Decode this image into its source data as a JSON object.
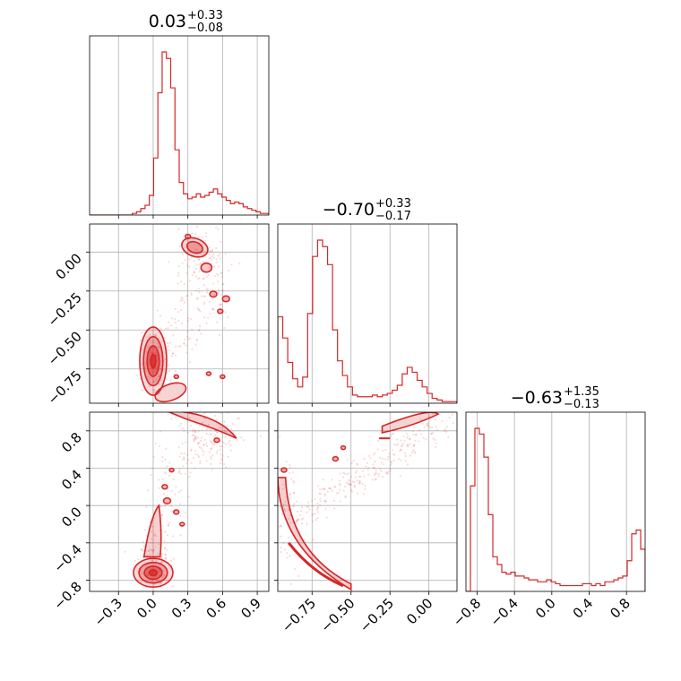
{
  "chart_data": {
    "type": "corner",
    "color": "#d62728",
    "grid": true,
    "parameters": [
      {
        "range": [
          -0.55,
          1.0
        ],
        "ticks": [
          -0.3,
          0.0,
          0.3,
          0.6,
          0.9
        ],
        "tick_labels": [
          "−0.3",
          "0.0",
          "0.3",
          "0.6",
          "0.9"
        ],
        "title": {
          "median": "0.03",
          "upper": "+0.33",
          "lower": "−0.08"
        }
      },
      {
        "range": [
          -0.97,
          0.18
        ],
        "ticks": [
          -0.75,
          -0.5,
          -0.25,
          0.0
        ],
        "tick_labels": [
          "−0.75",
          "−0.50",
          "−0.25",
          "0.00"
        ],
        "title": {
          "median": "−0.70",
          "upper": "+0.33",
          "lower": "−0.17"
        }
      },
      {
        "range": [
          -0.92,
          1.0
        ],
        "ticks": [
          -0.8,
          -0.4,
          0.0,
          0.4,
          0.8
        ],
        "tick_labels": [
          "−0.8",
          "−0.4",
          "0.0",
          "0.4",
          "0.8"
        ],
        "title": {
          "median": "−0.63",
          "upper": "+1.35",
          "lower": "−0.13"
        }
      }
    ],
    "histograms": [
      {
        "param": 0,
        "bins": [
          -0.55,
          1.0
        ],
        "values": [
          0,
          0,
          0,
          0,
          0,
          0,
          0,
          0,
          0,
          0,
          1,
          2,
          4,
          6,
          12,
          35,
          75,
          100,
          96,
          78,
          40,
          20,
          13,
          10,
          11,
          13,
          11,
          12,
          14,
          16,
          13,
          11,
          9,
          7,
          8,
          7,
          5,
          4,
          3,
          2,
          1,
          1
        ]
      },
      {
        "param": 1,
        "bins": [
          -0.97,
          0.18
        ],
        "values": [
          53,
          40,
          25,
          15,
          10,
          16,
          55,
          90,
          100,
          96,
          85,
          45,
          26,
          17,
          10,
          5,
          4,
          4,
          4,
          5,
          4,
          5,
          6,
          8,
          11,
          18,
          22,
          19,
          14,
          10,
          6,
          3,
          2,
          1,
          1,
          1
        ]
      },
      {
        "param": 2,
        "bins": [
          -0.92,
          1.0
        ],
        "values": [
          0,
          55,
          85,
          82,
          70,
          40,
          18,
          14,
          10,
          9,
          10,
          8,
          8,
          7,
          6,
          6,
          5,
          5,
          6,
          5,
          4,
          3,
          3,
          3,
          3,
          3,
          4,
          4,
          3,
          4,
          3,
          5,
          5,
          6,
          7,
          8,
          16,
          30,
          32,
          22
        ]
      }
    ],
    "contours_2d": [
      {
        "x_param": 0,
        "y_param": 1,
        "regions": [
          {
            "x": 0.0,
            "y": -0.67,
            "level": "high"
          },
          {
            "x": 0.38,
            "y": 0.02,
            "level": "low"
          },
          {
            "x": 0.52,
            "y": -0.3,
            "level": "low"
          }
        ]
      },
      {
        "x_param": 0,
        "y_param": 2,
        "regions": [
          {
            "x": 0.0,
            "y": -0.7,
            "level": "high"
          },
          {
            "x": 0.55,
            "y": 0.85,
            "level": "low"
          }
        ]
      },
      {
        "x_param": 1,
        "y_param": 2,
        "regions": [
          {
            "x": -0.72,
            "y": -0.55,
            "level": "ridge"
          },
          {
            "x": -0.1,
            "y": 0.92,
            "level": "low"
          }
        ]
      }
    ]
  }
}
